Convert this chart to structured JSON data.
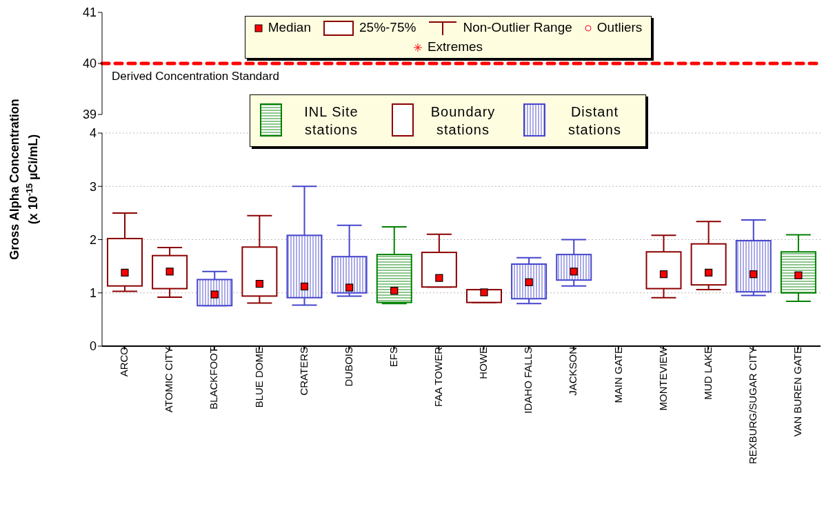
{
  "chart_data": [
    {
      "type": "box",
      "categories": [
        null,
        null,
        null,
        null,
        null,
        null,
        null,
        null,
        null,
        null,
        null,
        null,
        null,
        null,
        null,
        null
      ],
      "tick_labels": "y",
      "ylim": [
        39,
        41
      ],
      "yticks": [
        39,
        40,
        41
      ],
      "ref_lines": [
        {
          "axis": "y",
          "value": 40,
          "label": "Derived Concentration Standard",
          "color": "#ff0000",
          "line_style": "dashed"
        }
      ],
      "annotations": [
        "Median",
        "25%-75%",
        "Non-Outlier Range",
        "Outliers",
        "Extremes"
      ]
    },
    {
      "type": "box",
      "categories": [
        "ARCO",
        "ATOMIC CITY",
        "BLACKFOOT",
        "BLUE DOME",
        "CRATERS",
        "DUBOIS",
        "EFS",
        "FAA TOWER",
        "HOWE",
        "IDAHO FALLS",
        "JACKSON",
        "MAIN GATE",
        "MONTEVIEW",
        "MUD LAKE",
        "REXBURG/SUGAR CITY",
        "VAN BUREN GATE"
      ],
      "ylabel": "Gross Alpha Concentration (x 10$^{-15}$ µCi/mL)",
      "ylim": [
        0,
        4
      ],
      "yticks": [
        0,
        1,
        2,
        3,
        4
      ],
      "grid": "y",
      "legend": "top",
      "marker": "square",
      "series": [
        {
          "name": "INL Site stations",
          "color": "#008000",
          "boxes": [
            null,
            null,
            null,
            null,
            null,
            null,
            {
              "low": 0.8,
              "q1": 0.82,
              "median": 1.04,
              "q3": 1.72,
              "high": 2.24
            },
            null,
            null,
            null,
            null,
            null,
            null,
            null,
            null,
            {
              "low": 0.84,
              "q1": 1.0,
              "median": 1.33,
              "q3": 1.77,
              "high": 2.09
            }
          ]
        },
        {
          "name": "Boundary stations",
          "color": "#8b0000",
          "boxes": [
            {
              "low": 1.03,
              "q1": 1.13,
              "median": 1.38,
              "q3": 2.02,
              "high": 2.5
            },
            {
              "low": 0.92,
              "q1": 1.08,
              "median": 1.4,
              "q3": 1.7,
              "high": 1.85
            },
            null,
            {
              "low": 0.81,
              "q1": 0.94,
              "median": 1.17,
              "q3": 1.86,
              "high": 2.45
            },
            null,
            null,
            null,
            {
              "low": 1.11,
              "q1": 1.11,
              "median": 1.28,
              "q3": 1.76,
              "high": 2.1
            },
            {
              "low": 0.82,
              "q1": 0.82,
              "median": 1.01,
              "q3": 1.06,
              "high": 1.06
            },
            null,
            null,
            null,
            {
              "low": 0.91,
              "q1": 1.08,
              "median": 1.35,
              "q3": 1.77,
              "high": 2.08
            },
            {
              "low": 1.06,
              "q1": 1.15,
              "median": 1.38,
              "q3": 1.92,
              "high": 2.34
            },
            null,
            null
          ]
        },
        {
          "name": "Distant stations",
          "color": "#4444cc",
          "boxes": [
            null,
            null,
            {
              "low": 0.76,
              "q1": 0.76,
              "median": 0.97,
              "q3": 1.25,
              "high": 1.4
            },
            null,
            {
              "low": 0.77,
              "q1": 0.91,
              "median": 1.12,
              "q3": 2.08,
              "high": 3.0
            },
            {
              "low": 0.94,
              "q1": 1.0,
              "median": 1.1,
              "q3": 1.68,
              "high": 2.27
            },
            null,
            null,
            null,
            {
              "low": 0.8,
              "q1": 0.89,
              "median": 1.2,
              "q3": 1.54,
              "high": 1.66
            },
            {
              "low": 1.13,
              "q1": 1.24,
              "median": 1.4,
              "q3": 1.72,
              "high": 2.0
            },
            null,
            null,
            null,
            {
              "low": 0.95,
              "q1": 1.02,
              "median": 1.35,
              "q3": 1.98,
              "high": 2.37
            },
            null
          ]
        }
      ]
    }
  ]
}
